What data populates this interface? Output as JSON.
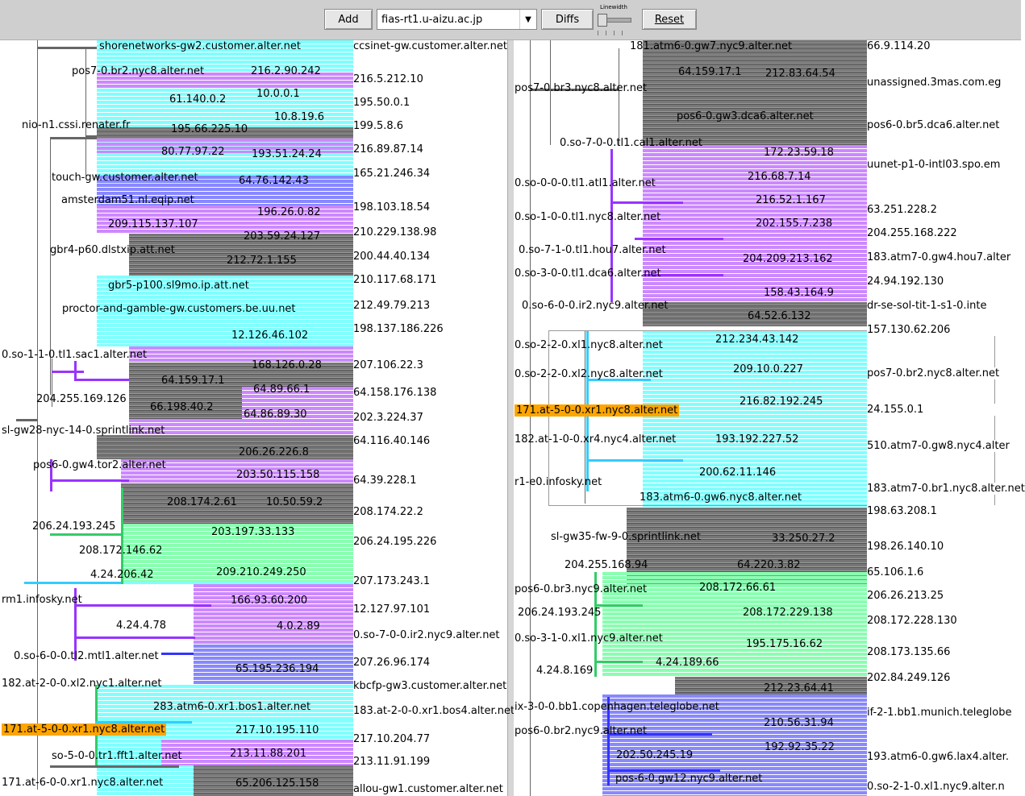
{
  "toolbar": {
    "add_label": "Add",
    "host_select_value": "fias-rt1.u-aizu.ac.jp",
    "diffs_label": "Diffs",
    "linewidth_label": "Linewidth",
    "reset_label": "Reset"
  },
  "colors": {
    "cyan": "#80ffff",
    "purple": "#cc88ff",
    "blue": "#8888ff",
    "green": "#88ffb0",
    "gray": "#777777",
    "highlight": "#ffa500"
  },
  "left": {
    "nodes": [
      {
        "text": "shorenetworks-gw2.customer.alter.net"
      },
      {
        "text": "pos7-0.br2.nyc8.alter.net"
      },
      {
        "text": "216.2.90.242"
      },
      {
        "text": "10.0.0.1"
      },
      {
        "text": "61.140.0.2"
      },
      {
        "text": "10.8.19.6"
      },
      {
        "text": "nio-n1.cssi.renater.fr"
      },
      {
        "text": "195.66.225.10"
      },
      {
        "text": "80.77.97.22"
      },
      {
        "text": "193.51.24.24"
      },
      {
        "text": "touch-gw.customer.alter.net"
      },
      {
        "text": "64.76.142.43"
      },
      {
        "text": "amsterdam51.nl.eqip.net"
      },
      {
        "text": "196.26.0.82"
      },
      {
        "text": "209.115.137.107"
      },
      {
        "text": "203.59.24.127"
      },
      {
        "text": "gbr4-p60.dlstxip.att.net"
      },
      {
        "text": "212.72.1.155"
      },
      {
        "text": "gbr5-p100.sl9mo.ip.att.net"
      },
      {
        "text": "proctor-and-gamble-gw.customers.be.uu.net"
      },
      {
        "text": "12.126.46.102"
      },
      {
        "text": "0.so-1-1-0.tl1.sac1.alter.net"
      },
      {
        "text": "168.126.0.28"
      },
      {
        "text": "64.159.17.1"
      },
      {
        "text": "204.255.169.126"
      },
      {
        "text": "64.89.66.1"
      },
      {
        "text": "66.198.40.2"
      },
      {
        "text": "64.86.89.30"
      },
      {
        "text": "sl-gw28-nyc-14-0.sprintlink.net"
      },
      {
        "text": "206.26.226.8"
      },
      {
        "text": "pos6-0.gw4.tor2.alter.net"
      },
      {
        "text": "203.50.115.158"
      },
      {
        "text": "208.174.2.61"
      },
      {
        "text": "10.50.59.2"
      },
      {
        "text": "206.24.193.245"
      },
      {
        "text": "203.197.33.133"
      },
      {
        "text": "208.172.146.62"
      },
      {
        "text": "4.24.206.42"
      },
      {
        "text": "209.210.249.250"
      },
      {
        "text": "rm1.infosky.net"
      },
      {
        "text": "166.93.60.200"
      },
      {
        "text": "4.24.4.78"
      },
      {
        "text": "4.0.2.89"
      },
      {
        "text": "0.so-6-0-0.tl2.mtl1.alter.net"
      },
      {
        "text": "65.195.236.194"
      },
      {
        "text": "182.at-2-0-0.xl2.nyc1.alter.net"
      },
      {
        "text": "283.atm6-0.xr1.bos1.alter.net"
      },
      {
        "text": "171.at-5-0-0.xr1.nyc8.alter.net"
      },
      {
        "text": "217.10.195.110"
      },
      {
        "text": "so-5-0-0.tr1.fft1.alter.net"
      },
      {
        "text": "213.11.88.201"
      },
      {
        "text": "171.at-6-0-0.xr1.nyc8.alter.net"
      },
      {
        "text": "65.206.125.158"
      }
    ],
    "leaves": [
      "ccsinet-gw.customer.alter.net",
      "216.5.212.10",
      "195.50.0.1",
      "199.5.8.6",
      "216.89.87.14",
      "165.21.246.34",
      "198.103.18.54",
      "210.229.138.98",
      "200.44.40.134",
      "210.117.68.171",
      "212.49.79.213",
      "198.137.186.226",
      "207.106.22.3",
      "64.158.176.138",
      "202.3.224.37",
      "64.116.40.146",
      "64.39.228.1",
      "208.174.22.2",
      "206.24.195.226",
      "207.173.243.1",
      "12.127.97.101",
      "0.so-7-0-0.ir2.nyc9.alter.net",
      "207.26.96.174",
      "kbcfp-gw3.customer.alter.net",
      "183.at-2-0-0.xr1.bos4.alter.net",
      "217.10.204.77",
      "213.11.91.199",
      "allou-gw1.customer.alter.net"
    ]
  },
  "right": {
    "nodes": [
      {
        "text": "181.atm6-0.gw7.nyc9.alter.net"
      },
      {
        "text": "64.159.17.1"
      },
      {
        "text": "212.83.64.54"
      },
      {
        "text": "pos7-0.br3.nyc8.alter.net"
      },
      {
        "text": "pos6-0.gw3.dca6.alter.net"
      },
      {
        "text": "0.so-7-0-0.tl1.cal1.alter.net"
      },
      {
        "text": "172.23.59.18"
      },
      {
        "text": "0.so-0-0-0.tl1.atl1.alter.net"
      },
      {
        "text": "216.68.7.14"
      },
      {
        "text": "216.52.1.167"
      },
      {
        "text": "0.so-1-0-0.tl1.nyc8.alter.net"
      },
      {
        "text": "202.155.7.238"
      },
      {
        "text": "0.so-7-1-0.tl1.hou7.alter.net"
      },
      {
        "text": "204.209.213.162"
      },
      {
        "text": "0.so-3-0-0.tl1.dca6.alter.net"
      },
      {
        "text": "158.43.164.9"
      },
      {
        "text": "0.so-6-0-0.ir2.nyc9.alter.net"
      },
      {
        "text": "64.52.6.132"
      },
      {
        "text": "212.234.43.142"
      },
      {
        "text": "0.so-2-2-0.xl1.nyc8.alter.net"
      },
      {
        "text": "209.10.0.227"
      },
      {
        "text": "0.so-2-2-0.xl2.nyc8.alter.net"
      },
      {
        "text": "216.82.192.245"
      },
      {
        "text": "171.at-5-0-0.xr1.nyc8.alter.net"
      },
      {
        "text": "182.at-1-0-0.xr4.nyc4.alter.net"
      },
      {
        "text": "193.192.227.52"
      },
      {
        "text": "200.62.11.146"
      },
      {
        "text": "r1-e0.infosky.net"
      },
      {
        "text": "183.atm6-0.gw6.nyc8.alter.net"
      },
      {
        "text": "sl-gw35-fw-9-0.sprintlink.net"
      },
      {
        "text": "33.250.27.2"
      },
      {
        "text": "204.255.168.94"
      },
      {
        "text": "64.220.3.82"
      },
      {
        "text": "pos6-0.br3.nyc9.alter.net"
      },
      {
        "text": "208.172.66.61"
      },
      {
        "text": "206.24.193.245"
      },
      {
        "text": "208.172.229.138"
      },
      {
        "text": "0.so-3-1-0.xl1.nyc9.alter.net"
      },
      {
        "text": "195.175.16.62"
      },
      {
        "text": "4.24.189.66"
      },
      {
        "text": "4.24.8.169"
      },
      {
        "text": "212.23.64.41"
      },
      {
        "text": "ix-3-0-0.bb1.copenhagen.teleglobe.net"
      },
      {
        "text": "pos6-0.br2.nyc9.alter.net"
      },
      {
        "text": "210.56.31.94"
      },
      {
        "text": "192.92.35.22"
      },
      {
        "text": "202.50.245.19"
      },
      {
        "text": "pos-6-0.gw12.nyc9.alter.net"
      }
    ],
    "leaves": [
      "66.9.114.20",
      "unassigned.3mas.com.eg",
      "pos6-0.br5.dca6.alter.net",
      "uunet-p1-0-intl03.spo.em",
      "63.251.228.2",
      "204.255.168.222",
      "183.atm7-0.gw4.hou7.alter",
      "24.94.192.130",
      "dr-se-sol-tit-1-s1-0.inte",
      "157.130.62.206",
      "pos7-0.br2.nyc8.alter.net",
      "24.155.0.1",
      "510.atm7-0.gw8.nyc4.alter",
      "183.atm7-0.br1.nyc8.alter.net",
      "198.63.208.1",
      "198.26.140.10",
      "65.106.1.6",
      "206.26.213.25",
      "208.172.228.130",
      "208.173.135.66",
      "202.84.249.126",
      "if-2-1.bb1.munich.teleglobe",
      "193.atm6-0.gw6.lax4.alter.",
      "0.so-2-1-0.xl1.nyc9.alter.n"
    ]
  }
}
